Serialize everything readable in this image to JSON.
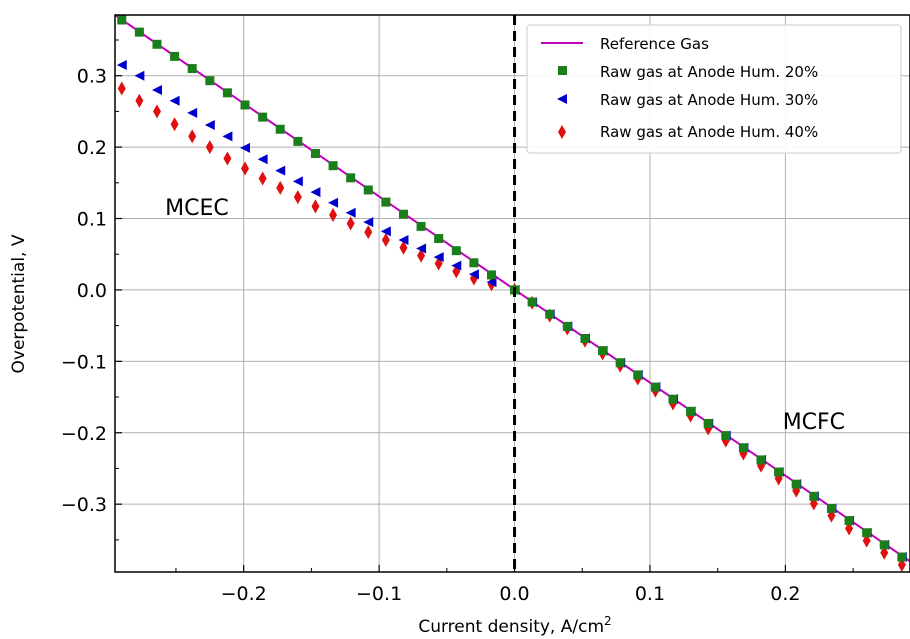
{
  "chart_data": {
    "type": "scatter",
    "xlabel": "Current density, A/cm",
    "xlabel_exp": "2",
    "ylabel": "Overpotential, V",
    "xlim": [
      -0.295,
      0.292
    ],
    "ylim": [
      -0.395,
      0.385
    ],
    "xticks": [
      -0.2,
      -0.1,
      0.0,
      0.1,
      0.2
    ],
    "xtick_labels": [
      "−0.2",
      "−0.1",
      "0.0",
      "0.1",
      "0.2"
    ],
    "yticks": [
      0.3,
      0.2,
      0.1,
      0.0,
      -0.1,
      -0.2,
      -0.3
    ],
    "ytick_labels": [
      "0.3",
      "0.2",
      "0.1",
      "0.0",
      "−0.1",
      "−0.2",
      "−0.3"
    ],
    "grid": true,
    "legend_position": "top-right",
    "vline_x": 0.0,
    "annotations": [
      {
        "text": "MCEC",
        "x": -0.258,
        "y": 0.105
      },
      {
        "text": "MCFC",
        "x": 0.198,
        "y": -0.195
      }
    ],
    "colors": {
      "reference": "#bf00bf",
      "hum20": "#1a7f1a",
      "hum30": "#0000cc",
      "hum40": "#e01010"
    },
    "x": [
      -0.29,
      -0.277,
      -0.264,
      -0.251,
      -0.238,
      -0.225,
      -0.212,
      -0.199,
      -0.186,
      -0.173,
      -0.16,
      -0.147,
      -0.134,
      -0.121,
      -0.108,
      -0.095,
      -0.082,
      -0.069,
      -0.056,
      -0.043,
      -0.03,
      -0.017,
      0.0,
      0.013,
      0.026,
      0.039,
      0.052,
      0.065,
      0.078,
      0.091,
      0.104,
      0.117,
      0.13,
      0.143,
      0.156,
      0.169,
      0.182,
      0.195,
      0.208,
      0.221,
      0.234,
      0.247,
      0.26,
      0.273,
      0.286
    ],
    "series": [
      {
        "name": "Reference Gas",
        "kind": "line",
        "x": [
          -0.295,
          0.292
        ],
        "y": [
          0.385,
          -0.38
        ]
      },
      {
        "name": "Raw gas at Anode Hum. 20%",
        "kind": "square",
        "y": [
          0.378,
          0.361,
          0.344,
          0.327,
          0.31,
          0.293,
          0.276,
          0.259,
          0.242,
          0.225,
          0.208,
          0.191,
          0.174,
          0.157,
          0.14,
          0.123,
          0.106,
          0.089,
          0.072,
          0.055,
          0.038,
          0.021,
          0.0,
          -0.017,
          -0.034,
          -0.051,
          -0.068,
          -0.085,
          -0.102,
          -0.119,
          -0.136,
          -0.153,
          -0.17,
          -0.187,
          -0.204,
          -0.221,
          -0.238,
          -0.255,
          -0.272,
          -0.289,
          -0.306,
          -0.323,
          -0.34,
          -0.357,
          -0.374
        ]
      },
      {
        "name": "Raw gas at Anode Hum. 30%",
        "kind": "triangle-left",
        "y": [
          0.315,
          0.3,
          0.28,
          0.265,
          0.248,
          0.231,
          0.215,
          0.199,
          0.183,
          0.167,
          0.152,
          0.137,
          0.122,
          0.108,
          0.095,
          0.082,
          0.07,
          0.058,
          0.046,
          0.034,
          0.022,
          0.011,
          0.0,
          -0.017,
          -0.034,
          -0.051,
          -0.068,
          -0.085,
          -0.102,
          -0.119,
          -0.136,
          -0.153,
          -0.17,
          -0.187,
          -0.204,
          -0.221,
          -0.238,
          -0.255,
          -0.272,
          -0.289,
          -0.306,
          -0.323,
          -0.34,
          -0.357,
          -0.374
        ]
      },
      {
        "name": "Raw gas at Anode Hum. 40%",
        "kind": "diamond",
        "y": [
          0.282,
          0.265,
          0.25,
          0.232,
          0.215,
          0.2,
          0.184,
          0.17,
          0.156,
          0.143,
          0.13,
          0.117,
          0.105,
          0.093,
          0.081,
          0.07,
          0.059,
          0.048,
          0.037,
          0.026,
          0.016,
          0.008,
          0.0,
          -0.018,
          -0.036,
          -0.054,
          -0.071,
          -0.089,
          -0.106,
          -0.124,
          -0.141,
          -0.159,
          -0.176,
          -0.194,
          -0.211,
          -0.229,
          -0.246,
          -0.264,
          -0.281,
          -0.299,
          -0.316,
          -0.334,
          -0.351,
          -0.368,
          -0.385
        ]
      }
    ]
  }
}
